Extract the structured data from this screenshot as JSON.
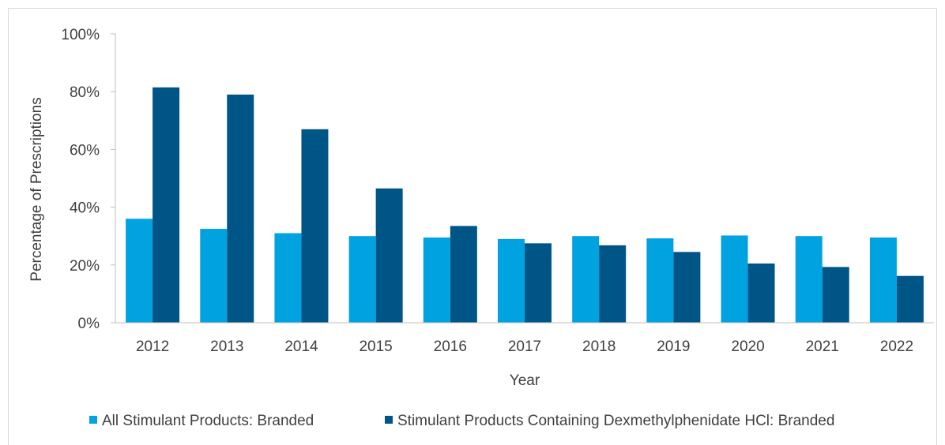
{
  "chart_data": {
    "type": "bar",
    "title": "",
    "xlabel": "Year",
    "ylabel": "Percentage of Prescriptions",
    "categories": [
      "2012",
      "2013",
      "2014",
      "2015",
      "2016",
      "2017",
      "2018",
      "2019",
      "2020",
      "2021",
      "2022"
    ],
    "ylim": [
      0,
      100
    ],
    "yticks": [
      0,
      20,
      40,
      60,
      80,
      100
    ],
    "ytick_labels": [
      "0%",
      "20%",
      "40%",
      "60%",
      "80%",
      "100%"
    ],
    "grid": false,
    "legend_position": "bottom",
    "series": [
      {
        "name": "All Stimulant Products: Branded",
        "color": "#00a3e0",
        "values": [
          36,
          32.5,
          31,
          30,
          29.5,
          29,
          30,
          29.2,
          30.2,
          30,
          29.5
        ]
      },
      {
        "name": "Stimulant Products Containing Dexmethylphenidate HCl: Branded",
        "color": "#005587",
        "values": [
          81.5,
          79,
          67,
          46.5,
          33.5,
          27.5,
          26.8,
          24.5,
          20.5,
          19.3,
          16.2
        ]
      }
    ]
  }
}
